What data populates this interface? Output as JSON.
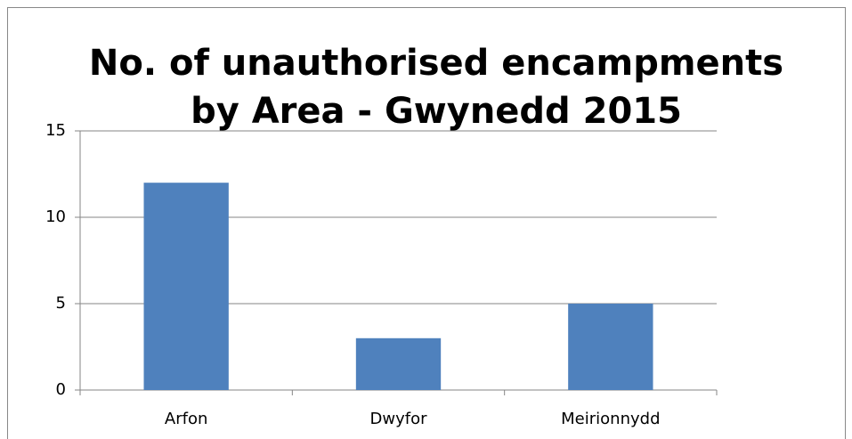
{
  "chart_data": {
    "type": "bar",
    "title": "No. of unauthorised encampments\nby Area  - Gwynedd  2015",
    "categories": [
      "Arfon",
      "Dwyfor",
      "Meirionnydd"
    ],
    "values": [
      12,
      3,
      5
    ],
    "color": "#4f81bd",
    "ylim": [
      0,
      15
    ],
    "yticks": [
      0,
      5,
      10,
      15
    ],
    "grid": true
  }
}
